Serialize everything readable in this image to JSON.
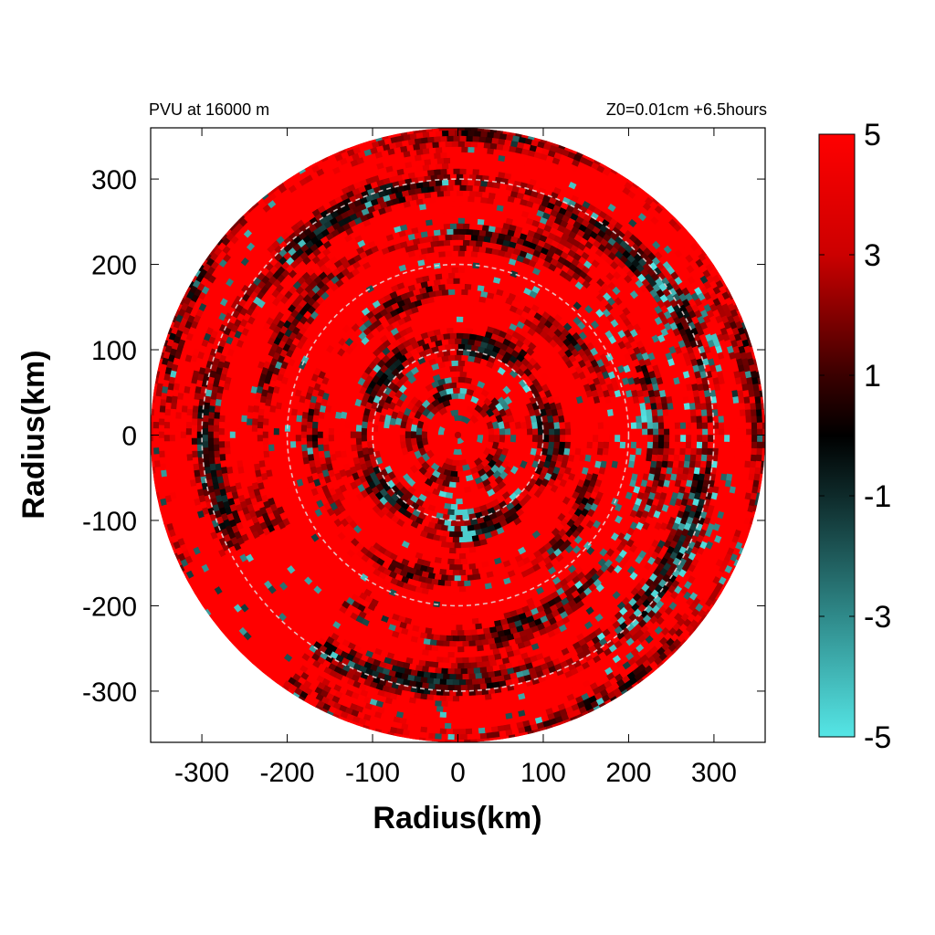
{
  "chart_data": {
    "type": "heatmap",
    "title": "PVU at 16000 m",
    "subtitle": "Z0=0.01cm  +6.5hours",
    "xlabel": "Radius(km)",
    "ylabel": "Radius(km)",
    "xlim": [
      -360,
      360
    ],
    "ylim": [
      -360,
      360
    ],
    "x_ticks": [
      -300,
      -200,
      -100,
      0,
      100,
      200,
      300
    ],
    "y_ticks": [
      300,
      200,
      100,
      0,
      -100,
      -200,
      -300
    ],
    "x_tick_labels": [
      "-300",
      "-200",
      "-100",
      "0",
      "100",
      "200",
      "300"
    ],
    "y_tick_labels": [
      "300",
      "200",
      "100",
      "0",
      "-100",
      "-200",
      "-300"
    ],
    "domain_radius_km": 360,
    "reference_circles_km": [
      100,
      200,
      300
    ],
    "colorbar": {
      "min": -5,
      "max": 5,
      "tick_labels": [
        "5",
        "3",
        "1",
        "-1",
        "-3",
        "-5"
      ],
      "tick_values": [
        5,
        3,
        1,
        -1,
        -3,
        -5
      ],
      "colors": {
        "high": "#ff0000",
        "mid": "#000000",
        "low": "#55e6e6"
      }
    },
    "field_summary": "Predominantly positive PVU (red, 2 to 5) with dark near-zero streaks arranged in concentric rings; scattered negative (cyan) patches, concentrated in the east and southeast between 200 and 320 km radius and near the center-south around (0, -100) km."
  }
}
